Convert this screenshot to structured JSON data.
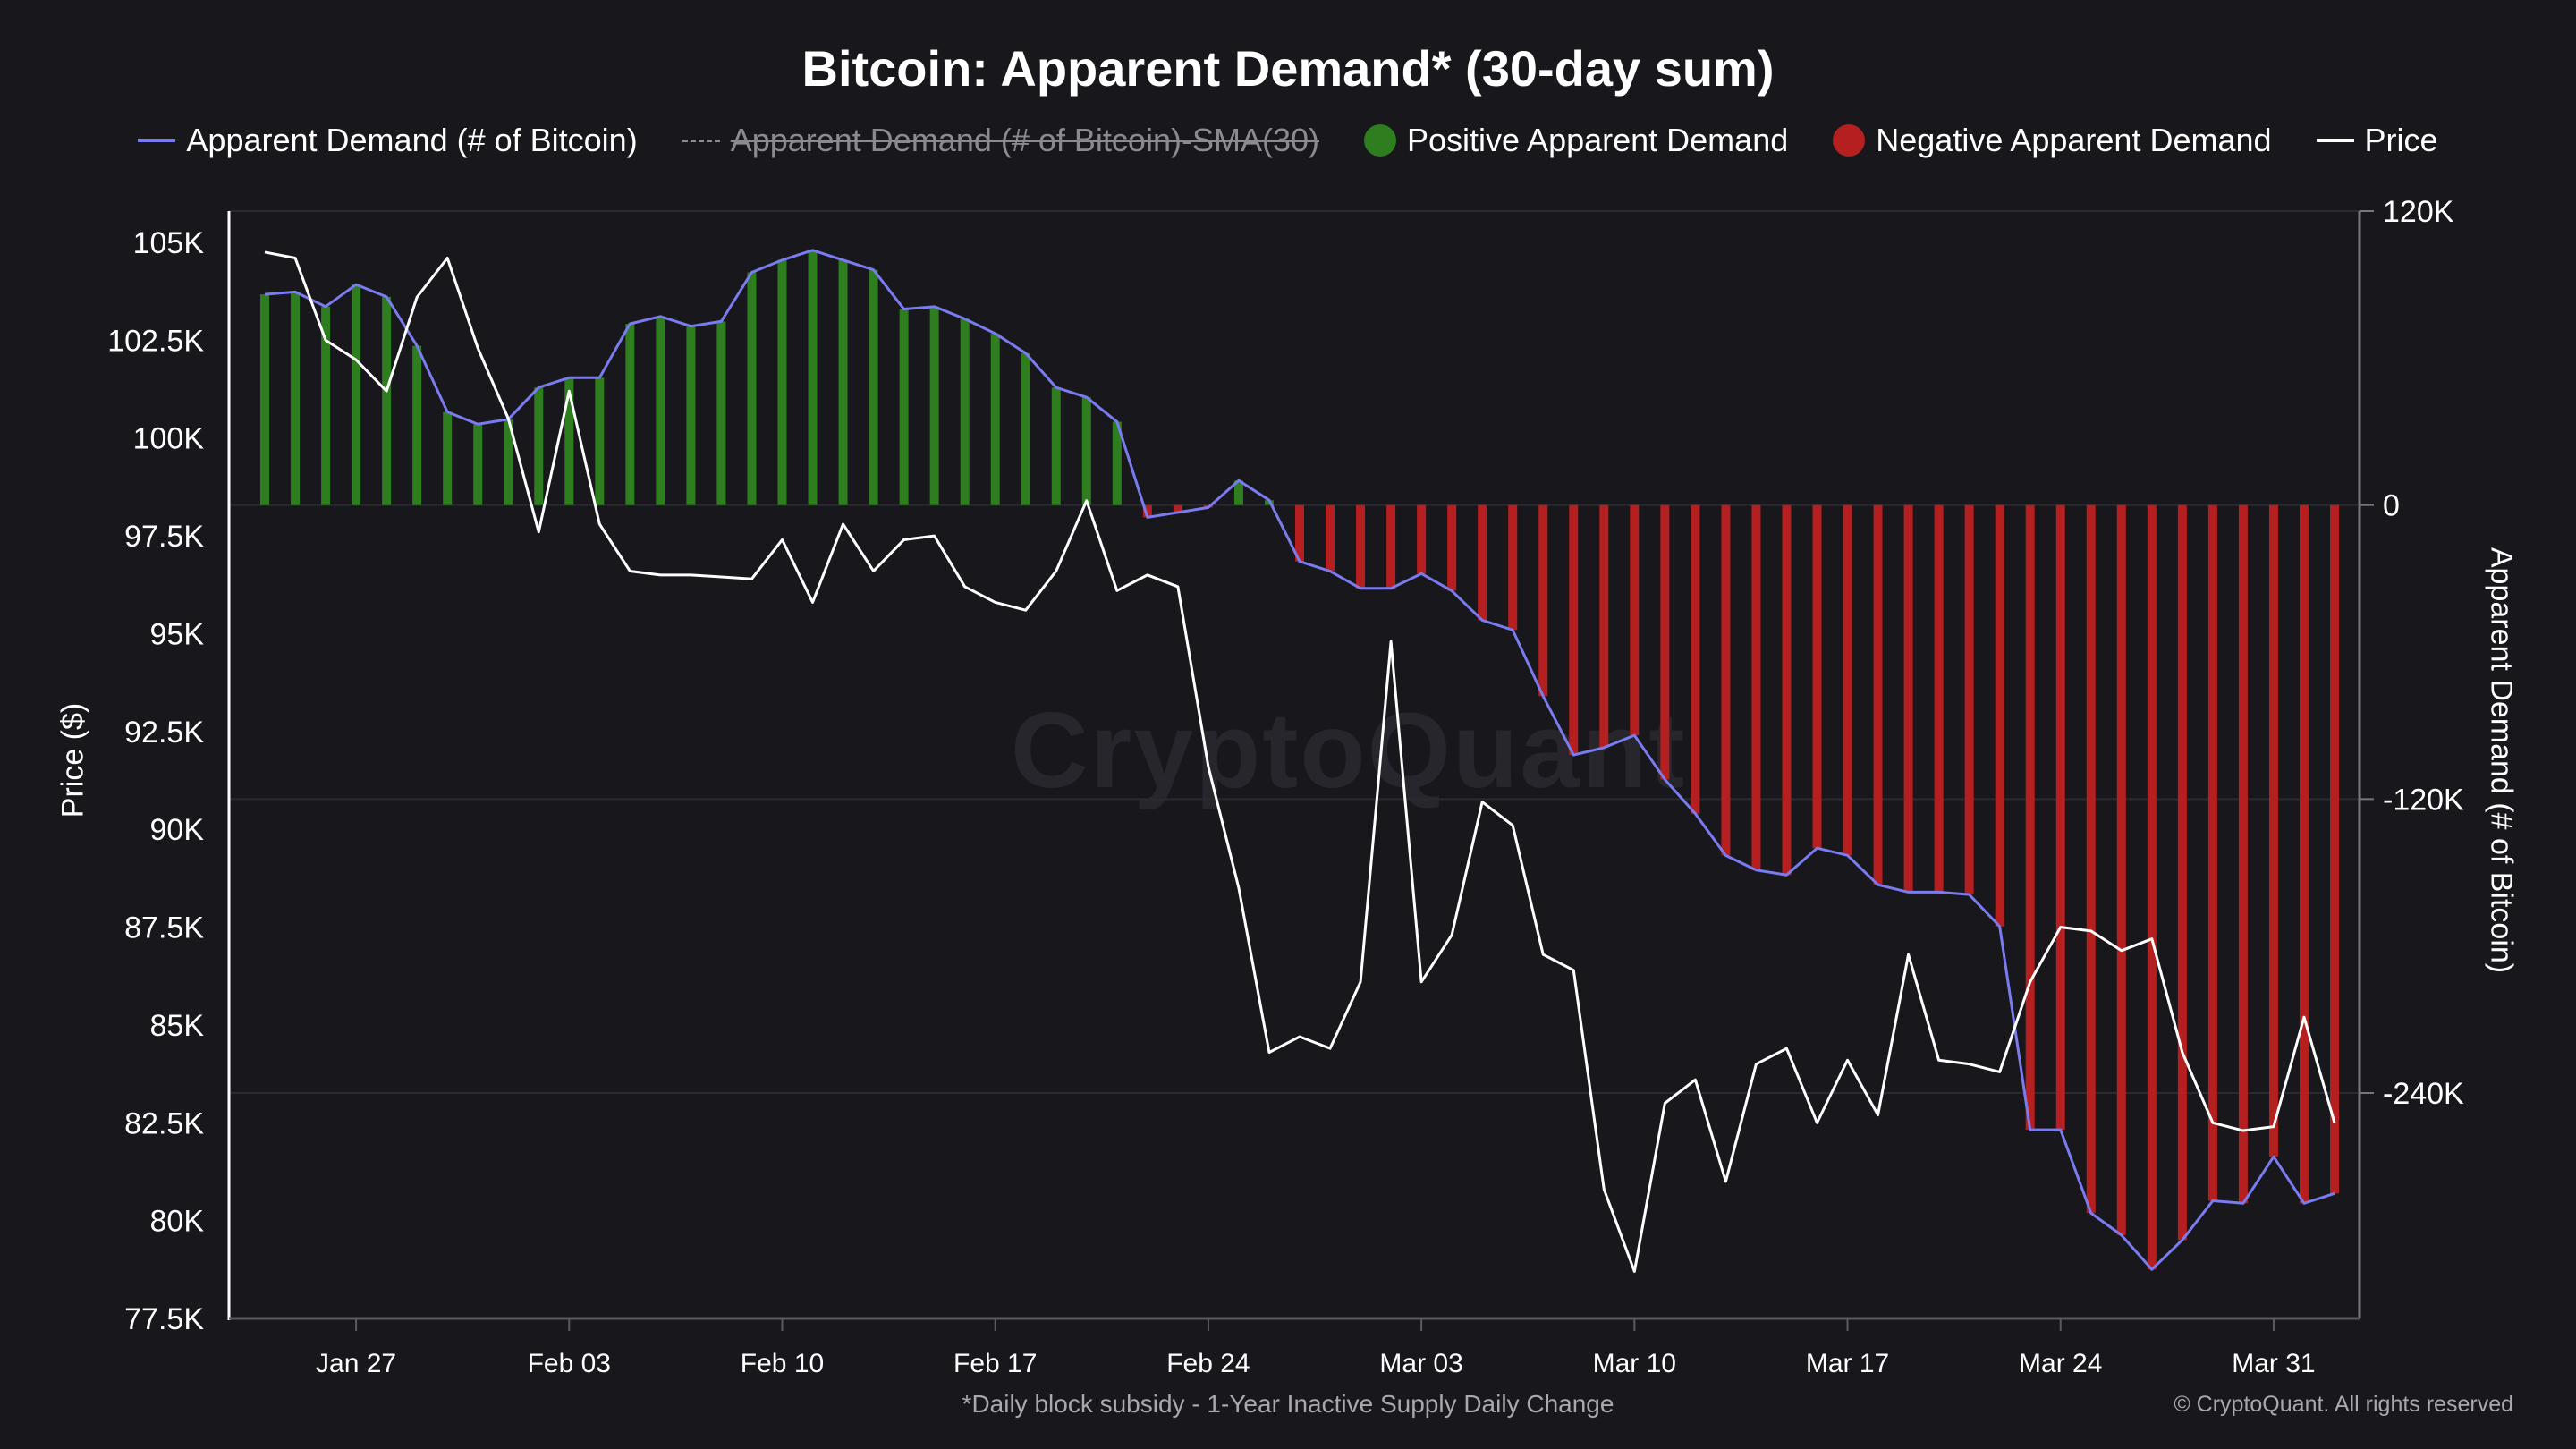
{
  "chart_data": {
    "type": "bar+line",
    "title": "Bitcoin: Apparent Demand* (30-day sum)",
    "footnote": "*Daily block subsidy - 1-Year Inactive Supply Daily Change",
    "copyright": "© CryptoQuant. All rights reserved",
    "watermark": "CryptoQuant",
    "legend_placement": "top-center",
    "legend": [
      {
        "label": "Apparent Demand (# of Bitcoin)",
        "color": "#7b7bf0",
        "style": "line",
        "enabled": true
      },
      {
        "label": "Apparent Demand (# of Bitcoin)-SMA(30)",
        "color": "#8a8a90",
        "style": "dashed",
        "enabled": false
      },
      {
        "label": "Positive Apparent Demand",
        "color": "#2e7d1f",
        "style": "dot",
        "enabled": true
      },
      {
        "label": "Negative Apparent Demand",
        "color": "#b51f1f",
        "style": "dot",
        "enabled": true
      },
      {
        "label": "Price",
        "color": "#ffffff",
        "style": "line",
        "enabled": true
      }
    ],
    "y_left": {
      "label": "Price ($)",
      "range": [
        77500,
        105800
      ],
      "ticks": [
        77500,
        80000,
        82500,
        85000,
        87500,
        90000,
        92500,
        95000,
        97500,
        100000,
        102500,
        105000
      ],
      "tick_labels": [
        "77.5K",
        "80K",
        "82.5K",
        "85K",
        "87.5K",
        "90K",
        "92.5K",
        "95K",
        "97.5K",
        "100K",
        "102.5K",
        "105K"
      ]
    },
    "y_right": {
      "label": "Apparent Demand (# of Bitcoin)",
      "range": [
        -332000,
        120000
      ],
      "ticks": [
        120000,
        0,
        -120000,
        -240000
      ],
      "tick_labels": [
        "120K",
        "0",
        "-120K",
        "-240K"
      ]
    },
    "x": {
      "start": "2025-01-24",
      "end": "2025-04-02",
      "ticks": [
        "2025-01-27",
        "2025-02-03",
        "2025-02-10",
        "2025-02-17",
        "2025-02-24",
        "2025-03-03",
        "2025-03-10",
        "2025-03-17",
        "2025-03-24",
        "2025-03-31"
      ],
      "tick_labels": [
        "Jan 27",
        "Feb 03",
        "Feb 10",
        "Feb 17",
        "Feb 24",
        "Mar 03",
        "Mar 10",
        "Mar 17",
        "Mar 24",
        "Mar 31"
      ]
    },
    "grid": true,
    "dates": [
      "2025-01-24",
      "2025-01-25",
      "2025-01-26",
      "2025-01-27",
      "2025-01-28",
      "2025-01-29",
      "2025-01-30",
      "2025-01-31",
      "2025-02-01",
      "2025-02-02",
      "2025-02-03",
      "2025-02-04",
      "2025-02-05",
      "2025-02-06",
      "2025-02-07",
      "2025-02-08",
      "2025-02-09",
      "2025-02-10",
      "2025-02-11",
      "2025-02-12",
      "2025-02-13",
      "2025-02-14",
      "2025-02-15",
      "2025-02-16",
      "2025-02-17",
      "2025-02-18",
      "2025-02-19",
      "2025-02-20",
      "2025-02-21",
      "2025-02-22",
      "2025-02-23",
      "2025-02-24",
      "2025-02-25",
      "2025-02-26",
      "2025-02-27",
      "2025-02-28",
      "2025-03-01",
      "2025-03-02",
      "2025-03-03",
      "2025-03-04",
      "2025-03-05",
      "2025-03-06",
      "2025-03-07",
      "2025-03-08",
      "2025-03-09",
      "2025-03-10",
      "2025-03-11",
      "2025-03-12",
      "2025-03-13",
      "2025-03-14",
      "2025-03-15",
      "2025-03-16",
      "2025-03-17",
      "2025-03-18",
      "2025-03-19",
      "2025-03-20",
      "2025-03-21",
      "2025-03-22",
      "2025-03-23",
      "2025-03-24",
      "2025-03-25",
      "2025-03-26",
      "2025-03-27",
      "2025-03-28",
      "2025-03-29",
      "2025-03-30",
      "2025-03-31",
      "2025-04-01",
      "2025-04-02"
    ],
    "series": [
      {
        "name": "Apparent Demand (# of Bitcoin)",
        "axis": "right",
        "render": "bars+line",
        "values": [
          86000,
          87000,
          81000,
          90000,
          85000,
          65000,
          38000,
          33000,
          35000,
          48000,
          52000,
          52000,
          74000,
          77000,
          73000,
          75000,
          95000,
          100000,
          104000,
          100000,
          96000,
          80000,
          81000,
          76000,
          70000,
          62000,
          48000,
          44000,
          34000,
          -5000,
          -3000,
          -1000,
          10000,
          2000,
          -23000,
          -27000,
          -34000,
          -34000,
          -28000,
          -35000,
          -47000,
          -51000,
          -78000,
          -102000,
          -99000,
          -94000,
          -112000,
          -126000,
          -143000,
          -149000,
          -151000,
          -140000,
          -143000,
          -155000,
          -158000,
          -158000,
          -159000,
          -172000,
          -255000,
          -255000,
          -289000,
          -298000,
          -312000,
          -300000,
          -284000,
          -285000,
          -266000,
          -285000,
          -281000
        ]
      },
      {
        "name": "Price",
        "axis": "left",
        "render": "line",
        "values": [
          104750,
          104600,
          102500,
          102000,
          101200,
          103600,
          104600,
          102300,
          100500,
          97600,
          101200,
          97800,
          96600,
          96500,
          96500,
          96450,
          96400,
          97400,
          95800,
          97800,
          96600,
          97400,
          97500,
          96200,
          95800,
          95600,
          96600,
          98400,
          96100,
          96500,
          96200,
          91600,
          88500,
          84300,
          84700,
          84400,
          86100,
          94800,
          86100,
          87300,
          90700,
          90100,
          86800,
          86400,
          80800,
          78700,
          83000,
          83600,
          81000,
          84000,
          84400,
          82500,
          84100,
          82700,
          86800,
          84100,
          84000,
          83800,
          86100,
          87500,
          87400,
          86900,
          87200,
          84300,
          82500,
          82300,
          82400,
          85200,
          82500
        ]
      }
    ]
  }
}
